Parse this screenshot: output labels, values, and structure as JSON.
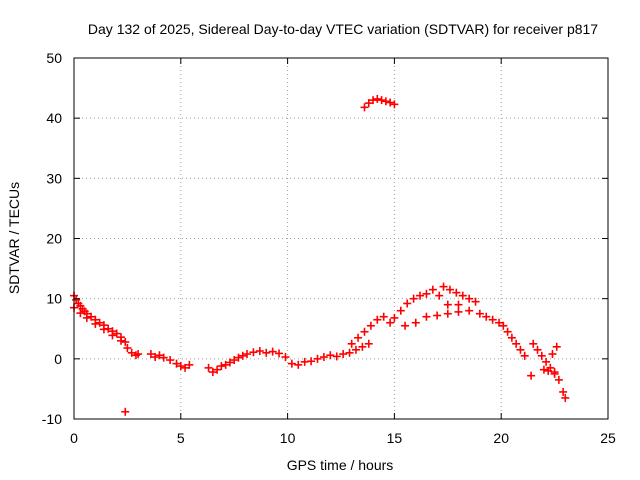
{
  "chart_data": {
    "type": "scatter",
    "title": "Day 132 of 2025, Sidereal Day-to-day VTEC variation (SDTVAR) for receiver p817",
    "xlabel": "GPS time / hours",
    "ylabel": "SDTVAR / TECUs",
    "xlim": [
      0,
      25
    ],
    "ylim": [
      -10,
      50
    ],
    "x_ticks": [
      "0",
      "5",
      "10",
      "15",
      "20",
      "25"
    ],
    "y_ticks": [
      "-10",
      "0",
      "10",
      "20",
      "30",
      "40",
      "50"
    ],
    "grid": true,
    "marker": "+",
    "series": [
      {
        "name": "SDTVAR",
        "color": "#ff0000",
        "points": [
          [
            0.0,
            10.5
          ],
          [
            0.1,
            9.8
          ],
          [
            0.2,
            9.2
          ],
          [
            0.3,
            8.8
          ],
          [
            0.4,
            8.3
          ],
          [
            0.5,
            7.9
          ],
          [
            0.6,
            7.5
          ],
          [
            0.8,
            7.0
          ],
          [
            1.0,
            6.5
          ],
          [
            1.2,
            6.0
          ],
          [
            1.4,
            5.6
          ],
          [
            1.6,
            5.0
          ],
          [
            1.8,
            4.6
          ],
          [
            2.0,
            4.2
          ],
          [
            2.2,
            3.6
          ],
          [
            2.4,
            2.8
          ],
          [
            2.5,
            1.8
          ],
          [
            2.7,
            1.0
          ],
          [
            2.9,
            0.6
          ],
          [
            3.0,
            0.8
          ],
          [
            0.0,
            8.5
          ],
          [
            0.3,
            7.6
          ],
          [
            0.6,
            6.8
          ],
          [
            1.0,
            5.8
          ],
          [
            1.4,
            4.9
          ],
          [
            1.8,
            3.9
          ],
          [
            2.2,
            3.0
          ],
          [
            2.4,
            -8.8
          ],
          [
            3.6,
            0.8
          ],
          [
            3.8,
            0.3
          ],
          [
            4.0,
            0.6
          ],
          [
            4.2,
            0.2
          ],
          [
            4.5,
            -0.2
          ],
          [
            4.8,
            -0.8
          ],
          [
            5.0,
            -1.2
          ],
          [
            5.2,
            -1.5
          ],
          [
            5.4,
            -1.0
          ],
          [
            6.3,
            -1.5
          ],
          [
            6.5,
            -2.2
          ],
          [
            6.7,
            -1.8
          ],
          [
            6.9,
            -1.2
          ],
          [
            7.1,
            -1.0
          ],
          [
            7.3,
            -0.6
          ],
          [
            7.5,
            -0.2
          ],
          [
            7.7,
            0.2
          ],
          [
            7.9,
            0.5
          ],
          [
            8.1,
            0.8
          ],
          [
            8.4,
            1.1
          ],
          [
            8.7,
            1.3
          ],
          [
            9.0,
            1.0
          ],
          [
            9.3,
            1.2
          ],
          [
            9.6,
            0.9
          ],
          [
            9.9,
            0.3
          ],
          [
            10.2,
            -0.8
          ],
          [
            10.5,
            -1.0
          ],
          [
            10.8,
            -0.5
          ],
          [
            11.1,
            -0.4
          ],
          [
            11.4,
            0.0
          ],
          [
            11.7,
            0.3
          ],
          [
            12.0,
            0.6
          ],
          [
            12.3,
            0.4
          ],
          [
            12.6,
            0.8
          ],
          [
            12.9,
            1.0
          ],
          [
            13.2,
            1.5
          ],
          [
            13.5,
            2.0
          ],
          [
            13.8,
            2.5
          ],
          [
            13.0,
            2.5
          ],
          [
            13.3,
            3.5
          ],
          [
            13.6,
            4.5
          ],
          [
            13.9,
            5.5
          ],
          [
            14.2,
            6.5
          ],
          [
            14.5,
            7.0
          ],
          [
            14.8,
            6.0
          ],
          [
            15.0,
            6.8
          ],
          [
            15.3,
            8.0
          ],
          [
            15.6,
            9.2
          ],
          [
            15.9,
            10.0
          ],
          [
            16.2,
            10.5
          ],
          [
            16.5,
            10.8
          ],
          [
            16.8,
            11.5
          ],
          [
            17.1,
            10.5
          ],
          [
            15.5,
            5.5
          ],
          [
            16.0,
            6.0
          ],
          [
            16.5,
            7.0
          ],
          [
            17.0,
            7.2
          ],
          [
            17.5,
            7.5
          ],
          [
            18.0,
            7.8
          ],
          [
            17.3,
            12.0
          ],
          [
            17.6,
            11.5
          ],
          [
            17.9,
            11.0
          ],
          [
            18.2,
            10.5
          ],
          [
            18.5,
            10.0
          ],
          [
            18.8,
            9.5
          ],
          [
            17.5,
            9.0
          ],
          [
            18.0,
            9.0
          ],
          [
            18.5,
            8.0
          ],
          [
            19.0,
            7.5
          ],
          [
            19.3,
            7.0
          ],
          [
            19.6,
            6.5
          ],
          [
            19.9,
            6.0
          ],
          [
            20.1,
            5.5
          ],
          [
            20.3,
            4.5
          ],
          [
            20.5,
            3.5
          ],
          [
            20.7,
            2.5
          ],
          [
            20.9,
            1.5
          ],
          [
            21.1,
            0.5
          ],
          [
            21.5,
            2.5
          ],
          [
            21.7,
            1.5
          ],
          [
            21.9,
            0.5
          ],
          [
            22.1,
            -0.5
          ],
          [
            22.3,
            -1.5
          ],
          [
            22.5,
            -2.5
          ],
          [
            22.6,
            2.0
          ],
          [
            22.4,
            0.8
          ],
          [
            22.2,
            -2.0
          ],
          [
            22.7,
            -3.5
          ],
          [
            22.9,
            -5.5
          ],
          [
            23.0,
            -6.5
          ],
          [
            21.4,
            -2.8
          ],
          [
            22.0,
            -1.8
          ],
          [
            22.5,
            -2.2
          ],
          [
            13.6,
            41.8
          ],
          [
            13.8,
            42.5
          ],
          [
            14.0,
            43.0
          ],
          [
            14.2,
            43.2
          ],
          [
            14.4,
            43.0
          ],
          [
            14.6,
            42.8
          ],
          [
            14.8,
            42.6
          ],
          [
            15.0,
            42.3
          ]
        ]
      }
    ]
  }
}
